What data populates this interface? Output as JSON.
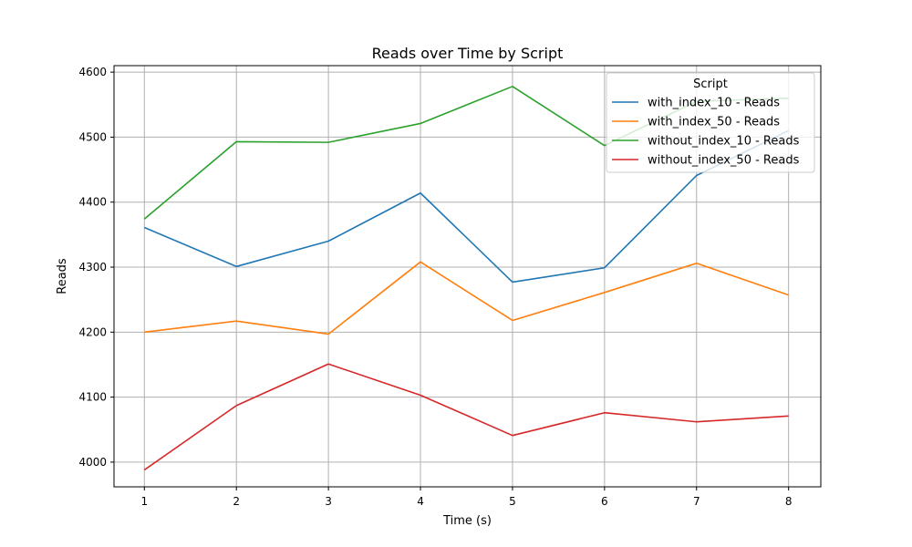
{
  "chart_data": {
    "type": "line",
    "title": "Reads over Time by Script",
    "xlabel": "Time (s)",
    "ylabel": "Reads",
    "x": [
      1,
      2,
      3,
      4,
      5,
      6,
      7,
      8
    ],
    "xlim": [
      0.67,
      8.35
    ],
    "ylim": [
      3962,
      4610
    ],
    "xticks": [
      1,
      2,
      3,
      4,
      5,
      6,
      7,
      8
    ],
    "yticks": [
      4000,
      4100,
      4200,
      4300,
      4400,
      4500,
      4600
    ],
    "grid": true,
    "legend": {
      "title": "Script",
      "placement": "top-right"
    },
    "series": [
      {
        "name": "with_index_10 - Reads",
        "color": "#1f77b4",
        "values": [
          4361,
          4301,
          4340,
          4414,
          4277,
          4299,
          4441,
          4510
        ]
      },
      {
        "name": "with_index_50 - Reads",
        "color": "#ff7f0e",
        "values": [
          4200,
          4217,
          4197,
          4308,
          4218,
          4261,
          4306,
          4257
        ]
      },
      {
        "name": "without_index_10 - Reads",
        "color": "#2ca02c",
        "values": [
          4374,
          4493,
          4492,
          4521,
          4578,
          4487,
          4555,
          4560
        ]
      },
      {
        "name": "without_index_50 - Reads",
        "color": "#d62728",
        "values": [
          3988,
          4087,
          4151,
          4103,
          4041,
          4076,
          4062,
          4071
        ]
      }
    ]
  }
}
